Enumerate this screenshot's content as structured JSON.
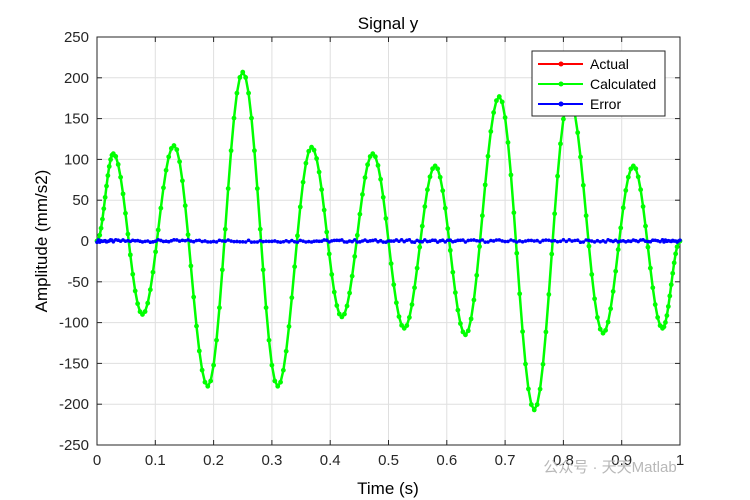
{
  "chart_data": {
    "type": "line",
    "title": "Signal y",
    "xlabel": "Time (s)",
    "ylabel": "Amplitude (mm/s2)",
    "xlim": [
      0,
      1
    ],
    "ylim": [
      -250,
      250
    ],
    "grid": true,
    "legend_position": "top-right",
    "x_ticks": [
      0,
      0.1,
      0.2,
      0.3,
      0.4,
      0.5,
      0.6,
      0.7,
      0.8,
      0.9,
      1
    ],
    "x_tick_labels": [
      "0",
      "0.1",
      "0.2",
      "0.3",
      "0.4",
      "0.5",
      "0.6",
      "0.7",
      "0.8",
      "0.9",
      "1"
    ],
    "y_ticks": [
      -250,
      -200,
      -150,
      -100,
      -50,
      0,
      50,
      100,
      150,
      200,
      250
    ],
    "y_tick_labels": [
      "-250",
      "-200",
      "-150",
      "-100",
      "-50",
      "0",
      "50",
      "100",
      "150",
      "200",
      "250"
    ],
    "x_sample": [
      0,
      0.028,
      0.078,
      0.132,
      0.19,
      0.25,
      0.31,
      0.368,
      0.42,
      0.473,
      0.527,
      0.58,
      0.632,
      0.69,
      0.75,
      0.81,
      0.868,
      0.92,
      0.97,
      1
    ],
    "series": [
      {
        "name": "Actual",
        "color": "#ff0000",
        "values": [
          0,
          107,
          -90,
          117,
          -178,
          207,
          -178,
          115,
          -93,
          107,
          -107,
          92,
          -115,
          177,
          -207,
          175,
          -113,
          92,
          -107,
          0
        ]
      },
      {
        "name": "Calculated",
        "color": "#00ff00",
        "values": [
          0,
          107,
          -90,
          117,
          -178,
          207,
          -178,
          115,
          -93,
          107,
          -107,
          92,
          -115,
          177,
          -207,
          175,
          -113,
          92,
          -107,
          0
        ]
      },
      {
        "name": "Error",
        "color": "#0000ff",
        "values": [
          0,
          0,
          0,
          0,
          0,
          0,
          0,
          0,
          0,
          0,
          0,
          0,
          0,
          0,
          0,
          0,
          0,
          0,
          0,
          0
        ]
      }
    ]
  },
  "watermark": {
    "text": "公众号 · 天天Matlab"
  }
}
